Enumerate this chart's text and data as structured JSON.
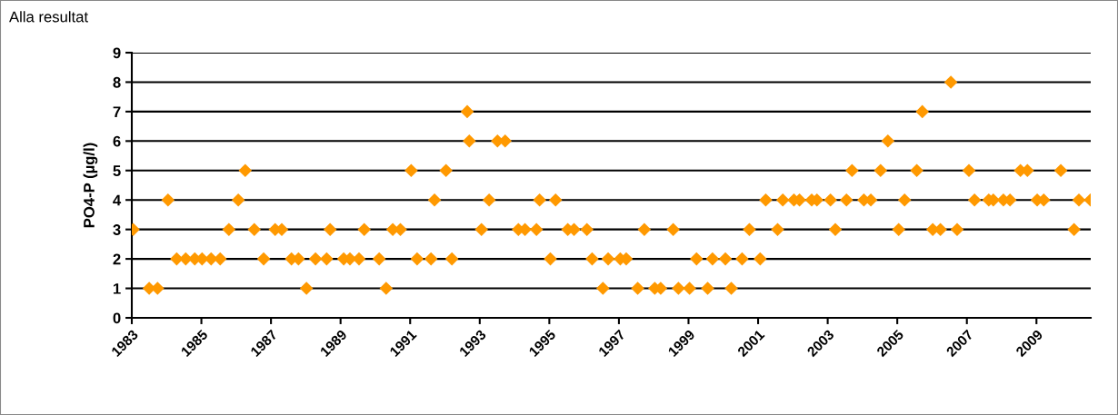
{
  "chart_data": {
    "type": "scatter",
    "title": "Alla resultat",
    "ylabel": "PO4-P (µg/l)",
    "x": [
      1983.04,
      1983.5,
      1983.74,
      1984.04,
      1984.29,
      1984.55,
      1984.81,
      1985.02,
      1985.28,
      1985.54,
      1985.79,
      1986.06,
      1986.26,
      1986.52,
      1986.79,
      1987.12,
      1987.31,
      1987.59,
      1987.79,
      1988.02,
      1988.28,
      1988.6,
      1988.7,
      1989.09,
      1989.27,
      1989.53,
      1989.68,
      1990.11,
      1990.31,
      1990.5,
      1990.72,
      1991.03,
      1991.2,
      1991.6,
      1991.7,
      1992.03,
      1992.2,
      1992.64,
      1992.7,
      1993.05,
      1993.27,
      1993.51,
      1993.73,
      1994.11,
      1994.3,
      1994.63,
      1994.72,
      1995.03,
      1995.18,
      1995.53,
      1995.71,
      1996.08,
      1996.23,
      1996.54,
      1996.69,
      1997.04,
      1997.21,
      1997.54,
      1997.73,
      1998.03,
      1998.2,
      1998.56,
      1998.71,
      1999.03,
      1999.23,
      1999.55,
      1999.69,
      2000.06,
      2000.23,
      2000.54,
      2000.75,
      2001.06,
      2001.22,
      2001.56,
      2001.71,
      2002.03,
      2002.19,
      2002.54,
      2002.69,
      2003.08,
      2003.22,
      2003.54,
      2003.7,
      2004.04,
      2004.24,
      2004.52,
      2004.73,
      2005.04,
      2005.21,
      2005.56,
      2005.72,
      2006.02,
      2006.24,
      2006.54,
      2006.72,
      2007.06,
      2007.22,
      2007.63,
      2007.76,
      2008.05,
      2008.24,
      2008.54,
      2008.74,
      2009.02,
      2009.21,
      2009.7,
      2010.08,
      2010.22,
      2010.55
    ],
    "series": [
      {
        "color": "#ff9900",
        "values": [
          3,
          1,
          1,
          4,
          2,
          2,
          2,
          2,
          2,
          2,
          3,
          4,
          5,
          3,
          2,
          3,
          3,
          2,
          2,
          1,
          2,
          2,
          3,
          2,
          2,
          2,
          3,
          2,
          1,
          3,
          3,
          5,
          2,
          2,
          4,
          5,
          2,
          7,
          6,
          3,
          4,
          6,
          6,
          3,
          3,
          3,
          4,
          2,
          4,
          3,
          3,
          3,
          2,
          1,
          2,
          2,
          2,
          1,
          3,
          1,
          1,
          3,
          1,
          1,
          2,
          1,
          2,
          2,
          1,
          2,
          3,
          2,
          4,
          3,
          4,
          4,
          4,
          4,
          4,
          4,
          3,
          4,
          5,
          4,
          4,
          5,
          6,
          3,
          4,
          5,
          7,
          3,
          3,
          8,
          3,
          5,
          4,
          4,
          4,
          4,
          4,
          5,
          5,
          4,
          4,
          5,
          3,
          4,
          4
        ]
      }
    ],
    "xlim": [
      1983,
      2010.56
    ],
    "xticks": [
      1983,
      1985,
      1987,
      1989,
      1991,
      1993,
      1995,
      1997,
      1999,
      2001,
      2003,
      2005,
      2007,
      2009
    ],
    "ylim": [
      0,
      9
    ],
    "yticks": [
      0,
      1,
      2,
      3,
      4,
      5,
      6,
      7,
      8,
      9
    ],
    "grid": "y",
    "marker": "diamond"
  }
}
